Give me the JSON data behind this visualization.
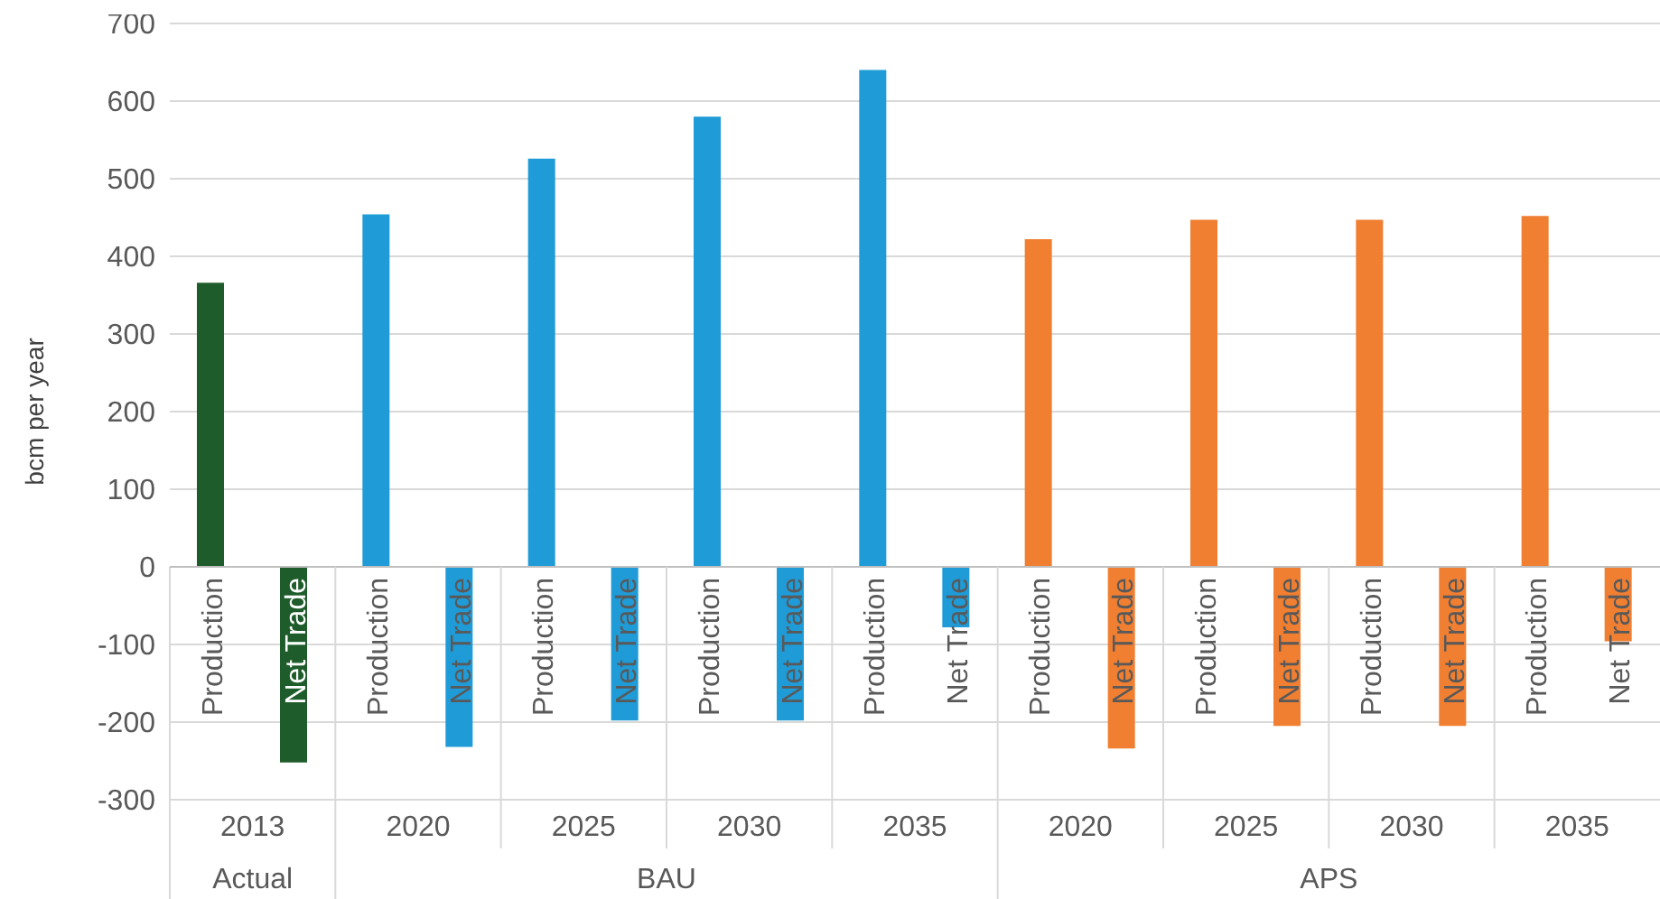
{
  "chart_data": {
    "type": "bar",
    "ylabel": "bcm per year",
    "categories": [
      "2013",
      "2020",
      "2025",
      "2030",
      "2035",
      "2020",
      "2025",
      "2030",
      "2035"
    ],
    "series": [
      {
        "name": "Production",
        "colors": [
          "#1f5c2b",
          "#1f9bd7",
          "#1f9bd7",
          "#1f9bd7",
          "#1f9bd7",
          "#f07f32",
          "#f07f32",
          "#f07f32",
          "#f07f32"
        ],
        "values": [
          366,
          454,
          526,
          580,
          640,
          422,
          447,
          447,
          452
        ]
      },
      {
        "name": "Net Trade",
        "colors": [
          "#1f5c2b",
          "#1f9bd7",
          "#1f9bd7",
          "#1f9bd7",
          "#1f9bd7",
          "#f07f32",
          "#f07f32",
          "#f07f32",
          "#f07f32"
        ],
        "values": [
          -252,
          -232,
          -198,
          -198,
          -78,
          -234,
          -205,
          -205,
          -96
        ]
      }
    ],
    "annotations": [
      "Actual",
      "BAU",
      "APS"
    ],
    "ylim": [
      -300,
      700
    ],
    "yticks": [
      -300,
      -200,
      -100,
      0,
      100,
      200,
      300,
      400,
      500,
      600,
      700
    ],
    "grid": "y"
  }
}
